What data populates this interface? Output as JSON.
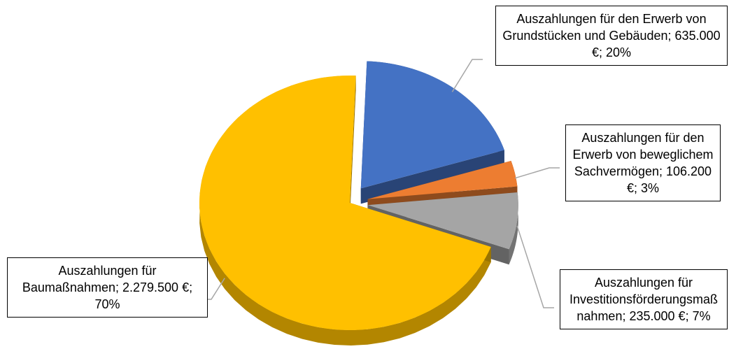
{
  "chart_data": {
    "type": "pie",
    "categories": [
      "Auszahlungen für den Erwerb von Grundstücken und Gebäuden",
      "Auszahlungen für den Erwerb von beweglichem Sachvermögen",
      "Auszahlungen für Investitionsförderungsmaßnahmen",
      "Auszahlungen für Baumaßnahmen"
    ],
    "values": [
      635000,
      106200,
      235000,
      2279500
    ],
    "value_labels": [
      "635.000 €",
      "106.200 €",
      "235.000 €",
      "2.279.500 €"
    ],
    "percents": [
      20,
      3,
      7,
      70
    ],
    "percent_labels": [
      "20%",
      "3%",
      "7%",
      "70%"
    ],
    "label_separator": "; ",
    "colors": [
      "#4472c4",
      "#ed7d31",
      "#a5a5a5",
      "#ffc000"
    ],
    "exploded": [
      true,
      true,
      true,
      false
    ],
    "three_d": true
  }
}
